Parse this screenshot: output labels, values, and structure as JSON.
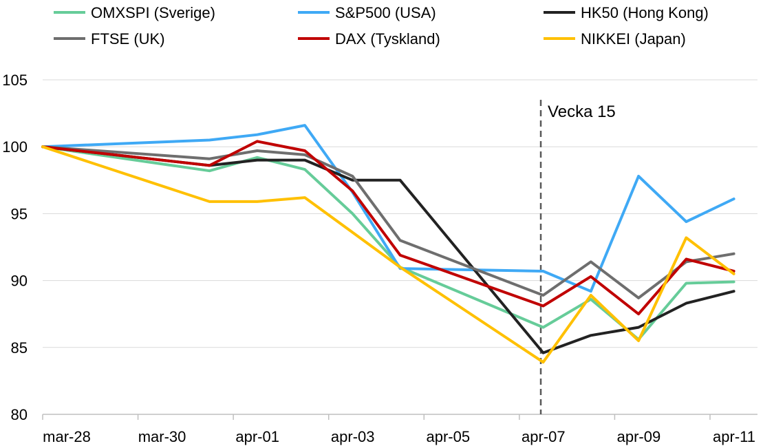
{
  "chart_data": {
    "type": "line",
    "title": "",
    "xlabel": "",
    "ylabel": "",
    "ylim": [
      80,
      105
    ],
    "yticks": [
      80,
      85,
      90,
      95,
      100,
      105
    ],
    "x_range": [
      0,
      14
    ],
    "x_ticks": [
      {
        "x": 0,
        "label": "mar-28"
      },
      {
        "x": 2,
        "label": "mar-30"
      },
      {
        "x": 4,
        "label": "apr-01"
      },
      {
        "x": 6,
        "label": "apr-03"
      },
      {
        "x": 8,
        "label": "apr-05"
      },
      {
        "x": 10,
        "label": "apr-07"
      },
      {
        "x": 12,
        "label": "apr-09"
      },
      {
        "x": 14,
        "label": "apr-11"
      }
    ],
    "annotation": {
      "x": 10.45,
      "label": "Vecka 15"
    },
    "legend_position": "top",
    "series": [
      {
        "name": "OMXSPI (Sverige)",
        "color": "#66CC99",
        "points": [
          [
            0,
            100
          ],
          [
            3.5,
            98.2
          ],
          [
            4.5,
            99.2
          ],
          [
            5.5,
            98.3
          ],
          [
            6.5,
            95
          ],
          [
            7.5,
            91
          ],
          [
            10.5,
            86.5
          ],
          [
            11.5,
            88.6
          ],
          [
            12.5,
            85.6
          ],
          [
            13.5,
            89.8
          ],
          [
            14.5,
            89.9
          ]
        ]
      },
      {
        "name": "S&P500 (USA)",
        "color": "#3FA9F5",
        "points": [
          [
            0,
            100
          ],
          [
            3.5,
            100.5
          ],
          [
            4.5,
            100.9
          ],
          [
            5.5,
            101.6
          ],
          [
            6.5,
            96.6
          ],
          [
            7.5,
            90.9
          ],
          [
            10.5,
            90.7
          ],
          [
            11.5,
            89.2
          ],
          [
            12.5,
            97.8
          ],
          [
            13.5,
            94.4
          ],
          [
            14.5,
            96.1
          ]
        ]
      },
      {
        "name": "HK50 (Hong Kong)",
        "color": "#222222",
        "points": [
          [
            0,
            100
          ],
          [
            3.5,
            98.6
          ],
          [
            4.5,
            99
          ],
          [
            5.5,
            99
          ],
          [
            6.5,
            97.5
          ],
          [
            7.5,
            97.5
          ],
          [
            10.5,
            84.6
          ],
          [
            11.5,
            85.9
          ],
          [
            12.5,
            86.5
          ],
          [
            13.5,
            88.3
          ],
          [
            14.5,
            89.2
          ]
        ]
      },
      {
        "name": "FTSE (UK)",
        "color": "#6E6E6E",
        "points": [
          [
            0,
            100
          ],
          [
            3.5,
            99.1
          ],
          [
            4.5,
            99.7
          ],
          [
            5.5,
            99.4
          ],
          [
            6.5,
            97.8
          ],
          [
            7.5,
            93
          ],
          [
            10.5,
            88.9
          ],
          [
            11.5,
            91.4
          ],
          [
            12.5,
            88.7
          ],
          [
            13.5,
            91.4
          ],
          [
            14.5,
            92
          ]
        ]
      },
      {
        "name": "DAX (Tyskland)",
        "color": "#C00000",
        "points": [
          [
            0,
            100
          ],
          [
            3.5,
            98.6
          ],
          [
            4.5,
            100.4
          ],
          [
            5.5,
            99.7
          ],
          [
            6.5,
            96.7
          ],
          [
            7.5,
            91.9
          ],
          [
            10.5,
            88.1
          ],
          [
            11.5,
            90.3
          ],
          [
            12.5,
            87.5
          ],
          [
            13.5,
            91.6
          ],
          [
            14.5,
            90.7
          ]
        ]
      },
      {
        "name": "NIKKEI (Japan)",
        "color": "#FFC000",
        "points": [
          [
            0,
            100
          ],
          [
            3.5,
            95.9
          ],
          [
            4.5,
            95.9
          ],
          [
            5.5,
            96.2
          ],
          [
            6.5,
            93.6
          ],
          [
            7.5,
            91
          ],
          [
            10.5,
            83.9
          ],
          [
            11.5,
            88.9
          ],
          [
            12.5,
            85.5
          ],
          [
            13.5,
            93.2
          ],
          [
            14.5,
            90.5
          ]
        ]
      }
    ]
  }
}
